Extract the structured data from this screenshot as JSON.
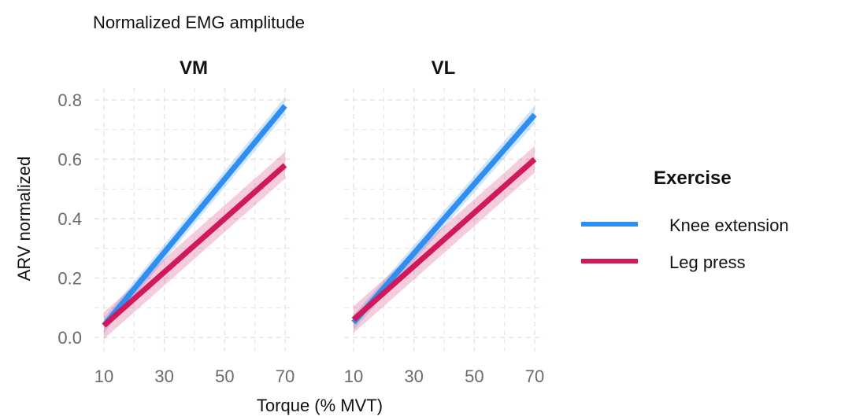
{
  "title": "Normalized EMG amplitude",
  "colors": {
    "knee": "#2E8FF0",
    "leg": "#D0185A",
    "grid": "#E4E4E4",
    "tick": "#6B6B6B"
  },
  "chart_data": {
    "type": "line",
    "title": "Normalized EMG amplitude",
    "xlabel": "Torque (% MVT)",
    "ylabel": "ARV normalized",
    "xlim": [
      10,
      70
    ],
    "ylim": [
      0,
      0.8
    ],
    "x_ticks": [
      "10",
      "30",
      "50",
      "70"
    ],
    "y_ticks": [
      "0.0",
      "0.2",
      "0.4",
      "0.6",
      "0.8"
    ],
    "grid": true,
    "legend": {
      "title": "Exercise",
      "position": "right",
      "entries": [
        "Knee extension",
        "Leg press"
      ]
    },
    "facets": [
      {
        "panel": "VM",
        "series": [
          {
            "name": "Knee extension",
            "x": [
              10,
              70
            ],
            "values": [
              0.04,
              0.78
            ],
            "ci_halfwidth": [
              0.025,
              0.03
            ]
          },
          {
            "name": "Leg press",
            "x": [
              10,
              70
            ],
            "values": [
              0.04,
              0.58
            ],
            "ci_halfwidth": [
              0.045,
              0.045
            ]
          }
        ]
      },
      {
        "panel": "VL",
        "series": [
          {
            "name": "Knee extension",
            "x": [
              10,
              70
            ],
            "values": [
              0.05,
              0.75
            ],
            "ci_halfwidth": [
              0.025,
              0.03
            ]
          },
          {
            "name": "Leg press",
            "x": [
              10,
              70
            ],
            "values": [
              0.06,
              0.6
            ],
            "ci_halfwidth": [
              0.045,
              0.045
            ]
          }
        ]
      }
    ]
  }
}
